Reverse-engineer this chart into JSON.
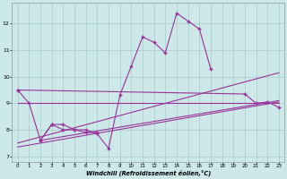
{
  "bg_color": "#cce8e8",
  "line_color": "#993399",
  "grid_color": "#aacccc",
  "xlabel": "Windchill (Refroidissement éolien,°C)",
  "xlim": [
    -0.5,
    23.5
  ],
  "ylim": [
    6.8,
    12.8
  ],
  "yticks": [
    7,
    8,
    9,
    10,
    11,
    12
  ],
  "xticks": [
    0,
    1,
    2,
    3,
    4,
    5,
    6,
    7,
    8,
    9,
    10,
    11,
    12,
    13,
    14,
    15,
    16,
    17,
    18,
    19,
    20,
    21,
    22,
    23
  ],
  "main_x": [
    0,
    1,
    2,
    3,
    4,
    5,
    6,
    7,
    8,
    9,
    10,
    11,
    12,
    13,
    14,
    15,
    16,
    17
  ],
  "main_y": [
    9.5,
    9.0,
    7.6,
    8.2,
    8.2,
    8.0,
    8.0,
    7.85,
    7.3,
    9.3,
    10.4,
    11.5,
    11.3,
    10.9,
    12.4,
    12.1,
    11.8,
    10.3
  ],
  "series2_x": [
    0,
    20,
    21,
    22,
    23
  ],
  "series2_y": [
    9.5,
    9.35,
    9.0,
    9.05,
    8.85
  ],
  "trendline1": {
    "x": [
      0,
      23
    ],
    "y": [
      7.5,
      10.15
    ]
  },
  "trendline2": {
    "x": [
      0,
      23
    ],
    "y": [
      7.35,
      9.05
    ]
  },
  "trendline3": {
    "x": [
      2,
      23
    ],
    "y": [
      7.6,
      9.1
    ]
  },
  "flatline_x": [
    0,
    1,
    2,
    3,
    4,
    5,
    6,
    7,
    8,
    9,
    10,
    11,
    12,
    13,
    14,
    15,
    16,
    17,
    18,
    19,
    20,
    21,
    22,
    23
  ],
  "flatline_y": [
    9.0,
    9.0,
    9.0,
    9.0,
    9.0,
    9.0,
    9.0,
    9.0,
    9.0,
    9.0,
    9.0,
    9.0,
    9.0,
    9.0,
    9.0,
    9.0,
    9.0,
    9.0,
    9.0,
    9.0,
    9.0,
    9.0,
    9.0,
    9.0
  ],
  "short_x": [
    2,
    3,
    4,
    5,
    6,
    7
  ],
  "short_y": [
    7.6,
    8.2,
    8.0,
    8.0,
    7.9,
    7.9
  ]
}
